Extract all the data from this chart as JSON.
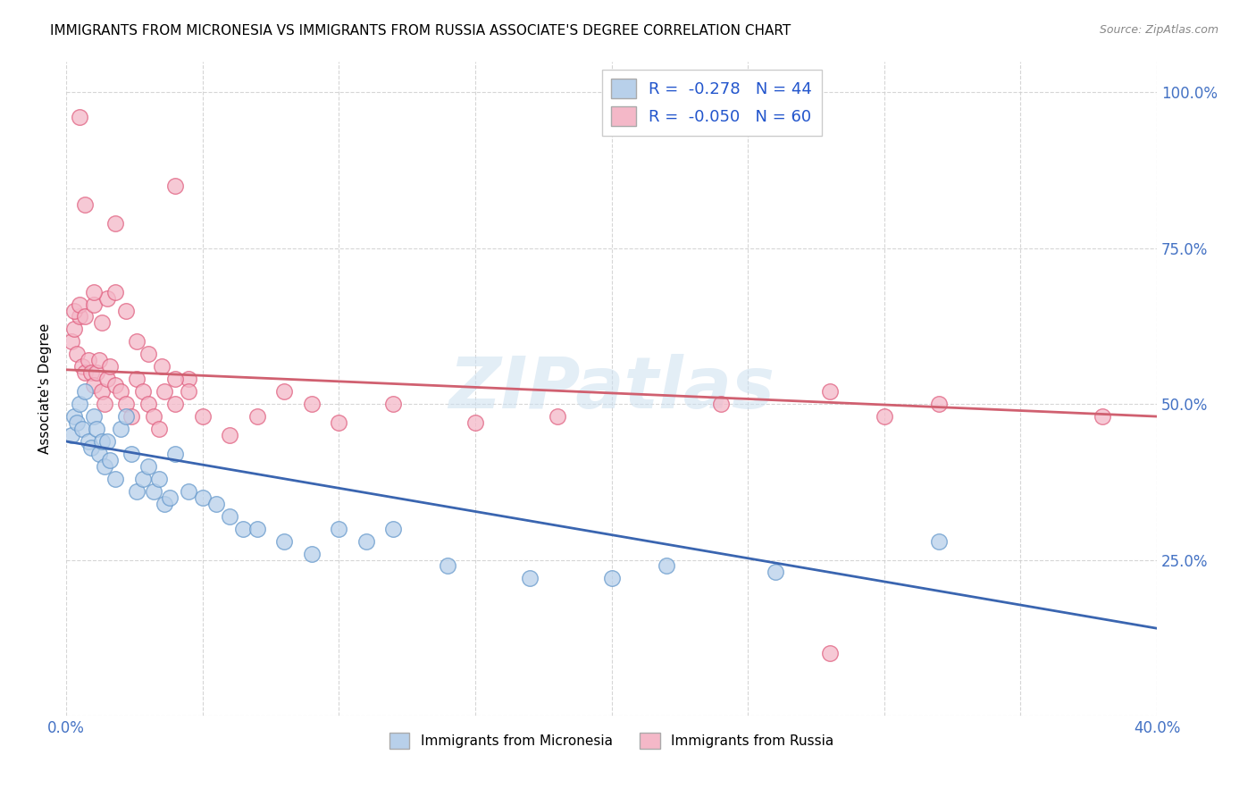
{
  "title": "IMMIGRANTS FROM MICRONESIA VS IMMIGRANTS FROM RUSSIA ASSOCIATE'S DEGREE CORRELATION CHART",
  "source": "Source: ZipAtlas.com",
  "ylabel": "Associate's Degree",
  "xlim": [
    0.0,
    0.4
  ],
  "ylim": [
    0.0,
    1.05
  ],
  "micronesia_color": "#b8d0ea",
  "russia_color": "#f4b8c8",
  "micronesia_edge": "#6699cc",
  "russia_edge": "#e06080",
  "trendline_micronesia_color": "#3a65b0",
  "trendline_russia_color": "#d06070",
  "watermark": "ZIPatlas",
  "micronesia_x": [
    0.002,
    0.003,
    0.004,
    0.005,
    0.006,
    0.007,
    0.008,
    0.009,
    0.01,
    0.011,
    0.012,
    0.013,
    0.014,
    0.015,
    0.016,
    0.018,
    0.02,
    0.022,
    0.024,
    0.026,
    0.028,
    0.03,
    0.032,
    0.034,
    0.036,
    0.038,
    0.04,
    0.045,
    0.05,
    0.055,
    0.06,
    0.065,
    0.07,
    0.08,
    0.09,
    0.1,
    0.11,
    0.12,
    0.14,
    0.17,
    0.2,
    0.22,
    0.26,
    0.32
  ],
  "micronesia_y": [
    0.45,
    0.48,
    0.47,
    0.5,
    0.46,
    0.52,
    0.44,
    0.43,
    0.48,
    0.46,
    0.42,
    0.44,
    0.4,
    0.44,
    0.41,
    0.38,
    0.46,
    0.48,
    0.42,
    0.36,
    0.38,
    0.4,
    0.36,
    0.38,
    0.34,
    0.35,
    0.42,
    0.36,
    0.35,
    0.34,
    0.32,
    0.3,
    0.3,
    0.28,
    0.26,
    0.3,
    0.28,
    0.3,
    0.24,
    0.22,
    0.22,
    0.24,
    0.23,
    0.28
  ],
  "russia_x": [
    0.002,
    0.003,
    0.004,
    0.005,
    0.006,
    0.007,
    0.008,
    0.009,
    0.01,
    0.011,
    0.012,
    0.013,
    0.014,
    0.015,
    0.016,
    0.018,
    0.02,
    0.022,
    0.024,
    0.026,
    0.028,
    0.03,
    0.032,
    0.034,
    0.036,
    0.04,
    0.045,
    0.05,
    0.06,
    0.07,
    0.08,
    0.09,
    0.1,
    0.12,
    0.15,
    0.18,
    0.24,
    0.28,
    0.3,
    0.32,
    0.003,
    0.005,
    0.007,
    0.01,
    0.013,
    0.015,
    0.018,
    0.022,
    0.026,
    0.03,
    0.035,
    0.04,
    0.045,
    0.005,
    0.04,
    0.018,
    0.01,
    0.007,
    0.28,
    0.38
  ],
  "russia_y": [
    0.6,
    0.62,
    0.58,
    0.64,
    0.56,
    0.55,
    0.57,
    0.55,
    0.53,
    0.55,
    0.57,
    0.52,
    0.5,
    0.54,
    0.56,
    0.53,
    0.52,
    0.5,
    0.48,
    0.54,
    0.52,
    0.5,
    0.48,
    0.46,
    0.52,
    0.5,
    0.54,
    0.48,
    0.45,
    0.48,
    0.52,
    0.5,
    0.47,
    0.5,
    0.47,
    0.48,
    0.5,
    0.52,
    0.48,
    0.5,
    0.65,
    0.66,
    0.64,
    0.66,
    0.63,
    0.67,
    0.68,
    0.65,
    0.6,
    0.58,
    0.56,
    0.54,
    0.52,
    0.96,
    0.85,
    0.79,
    0.68,
    0.82,
    0.1,
    0.48
  ],
  "micronesia_trend_x": [
    0.0,
    0.4
  ],
  "micronesia_trend_y": [
    0.44,
    0.14
  ],
  "russia_trend_x": [
    0.0,
    0.4
  ],
  "russia_trend_y": [
    0.555,
    0.48
  ]
}
